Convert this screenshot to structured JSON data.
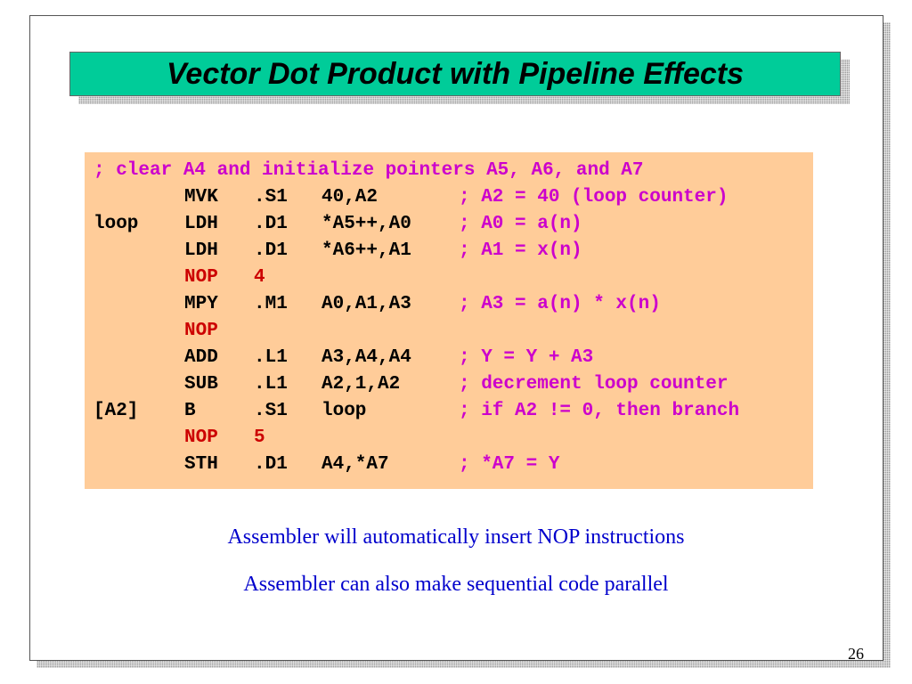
{
  "slide": {
    "title": "Vector Dot Product with Pipeline Effects",
    "page_number": "26",
    "code_header": "; clear A4 and initialize pointers A5, A6, and A7",
    "code_lines": [
      {
        "label": "",
        "op": "MVK",
        "unit": ".S1",
        "args": "40,A2",
        "comment": "; A2 = 40 (loop counter)"
      },
      {
        "label": "loop",
        "op": "LDH",
        "unit": ".D1",
        "args": "*A5++,A0",
        "comment": "; A0 = a(n)"
      },
      {
        "label": "",
        "op": "LDH",
        "unit": ".D1",
        "args": "*A6++,A1",
        "comment": "; A1 = x(n)"
      },
      {
        "label": "",
        "op": "NOP",
        "unit": "4",
        "args": "",
        "comment": ""
      },
      {
        "label": "",
        "op": "MPY",
        "unit": ".M1",
        "args": "A0,A1,A3",
        "comment": "; A3 = a(n) * x(n)"
      },
      {
        "label": "",
        "op": "NOP",
        "unit": "",
        "args": "",
        "comment": ""
      },
      {
        "label": "",
        "op": "ADD",
        "unit": ".L1",
        "args": "A3,A4,A4",
        "comment": "; Y = Y + A3"
      },
      {
        "label": "",
        "op": "SUB",
        "unit": ".L1",
        "args": "A2,1,A2",
        "comment": "; decrement loop counter"
      },
      {
        "label": "[A2]",
        "op": "B",
        "unit": ".S1",
        "args": "loop",
        "comment": "; if A2 != 0, then branch"
      },
      {
        "label": "",
        "op": "NOP",
        "unit": "5",
        "args": "",
        "comment": ""
      },
      {
        "label": "",
        "op": "STH",
        "unit": ".D1",
        "args": "A4,*A7",
        "comment": "; *A7 = Y"
      }
    ],
    "notes": [
      "Assembler will automatically insert NOP instructions",
      "Assembler can also make sequential code parallel"
    ]
  },
  "colors": {
    "title_bg": "#00cc99",
    "code_bg": "#ffcc99",
    "comment": "#cc00cc",
    "nop": "#cc0000",
    "note_text": "#0000cc"
  }
}
